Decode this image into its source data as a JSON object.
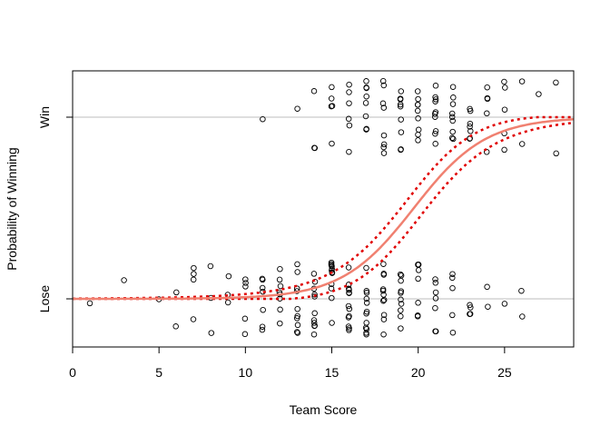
{
  "chart_data": {
    "type": "scatter",
    "xlabel": "Team Score",
    "ylabel": "Probability of Winning",
    "xlim": [
      0,
      29
    ],
    "x_ticks": [
      0,
      5,
      10,
      15,
      20,
      25
    ],
    "y_categories": [
      "Lose",
      "Win"
    ],
    "grid": "horizontal reference lines at Lose and Win",
    "fit_color": "#F08070",
    "ci_color": "#E00000",
    "point_color": "#000000",
    "logistic_fit": {
      "intercept": -9.48,
      "slope": 0.48
    },
    "confidence_band_halfwidth": 0.09,
    "lose_scores": [
      1,
      3,
      5,
      6,
      6,
      7,
      7,
      7,
      7,
      8,
      8,
      8,
      9,
      9,
      9,
      10,
      10,
      10,
      10,
      10,
      11,
      11,
      11,
      11,
      11,
      11,
      11,
      12,
      12,
      12,
      12,
      12,
      12,
      12,
      12,
      13,
      13,
      13,
      13,
      13,
      13,
      13,
      13,
      13,
      13,
      14,
      14,
      14,
      14,
      14,
      14,
      14,
      14,
      14,
      14,
      14,
      15,
      15,
      15,
      15,
      15,
      15,
      15,
      15,
      15,
      15,
      15,
      15,
      16,
      16,
      16,
      16,
      16,
      16,
      16,
      16,
      16,
      16,
      16,
      16,
      16,
      17,
      17,
      17,
      17,
      17,
      17,
      17,
      17,
      17,
      17,
      17,
      17,
      18,
      18,
      18,
      18,
      18,
      18,
      18,
      18,
      18,
      18,
      18,
      19,
      19,
      19,
      19,
      19,
      19,
      19,
      19,
      19,
      19,
      20,
      20,
      20,
      20,
      20,
      20,
      20,
      20,
      21,
      21,
      21,
      21,
      21,
      21,
      21,
      22,
      22,
      22,
      22,
      22,
      23,
      23,
      23,
      23,
      24,
      24,
      25,
      26,
      26
    ],
    "win_scores": [
      11,
      13,
      14,
      14,
      14,
      15,
      15,
      15,
      15,
      15,
      16,
      16,
      16,
      16,
      16,
      16,
      17,
      17,
      17,
      17,
      17,
      17,
      17,
      17,
      18,
      18,
      18,
      18,
      18,
      18,
      18,
      18,
      19,
      19,
      19,
      19,
      19,
      19,
      19,
      19,
      19,
      20,
      20,
      20,
      20,
      20,
      20,
      20,
      20,
      20,
      21,
      21,
      21,
      21,
      21,
      21,
      21,
      21,
      21,
      21,
      22,
      22,
      22,
      22,
      22,
      22,
      22,
      22,
      22,
      23,
      23,
      23,
      23,
      23,
      23,
      23,
      24,
      24,
      24,
      24,
      24,
      25,
      25,
      25,
      25,
      25,
      26,
      26,
      27,
      28,
      28
    ]
  }
}
